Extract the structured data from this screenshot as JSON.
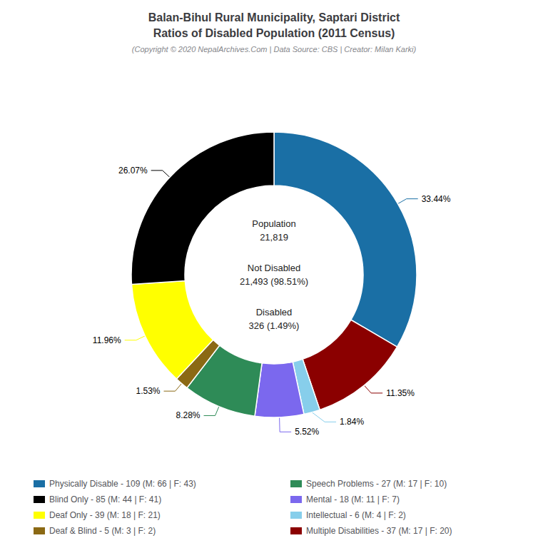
{
  "chart_data": {
    "type": "pie",
    "title": "Balan-Bihul Rural Municipality, Saptari District\nRatios of Disabled Population (2011 Census)",
    "subtitle": "(Copyright © 2020 NepalArchives.Com | Data Source: CBS | Creator: Milan Karki)",
    "categories": [
      "Physically Disable - 109 (M: 66 | F: 43)",
      "Multiple Disabilities - 37 (M: 17 | F: 20)",
      "Intellectual - 6 (M: 4 | F: 2)",
      "Mental - 18 (M: 11 | F: 7)",
      "Speech Problems - 27 (M: 17 | F: 10)",
      "Deaf & Blind - 5 (M: 3 | F: 2)",
      "Deaf Only - 39 (M: 18 | F: 21)",
      "Blind Only - 85 (M: 44 | F: 41)"
    ],
    "values": [
      33.44,
      11.35,
      1.84,
      5.52,
      8.28,
      1.53,
      11.96,
      26.07
    ],
    "value_labels": [
      "33.44%",
      "11.35%",
      "1.84%",
      "5.52%",
      "8.28%",
      "1.53%",
      "11.96%",
      "26.07%"
    ],
    "colors": [
      "#1A6FA5",
      "#8B0000",
      "#87CEEB",
      "#7B68EE",
      "#2E8B57",
      "#8B6914",
      "#FFFF00",
      "#000000"
    ],
    "data_labels": true,
    "annotations": [
      "Population\n21,819",
      "Not Disabled\n21,493 (98.51%)",
      "Disabled\n326 (1.49%)"
    ],
    "legend": "bottom",
    "legend_order": [
      "Physically Disable - 109 (M: 66 | F: 43)",
      "Blind Only - 85 (M: 44 | F: 41)",
      "Deaf Only - 39 (M: 18 | F: 21)",
      "Deaf & Blind - 5 (M: 3 | F: 2)",
      "Speech Problems - 27 (M: 17 | F: 10)",
      "Mental - 18 (M: 11 | F: 7)",
      "Intellectual - 6 (M: 4 | F: 2)",
      "Multiple Disabilities - 37 (M: 17 | F: 20)"
    ]
  }
}
